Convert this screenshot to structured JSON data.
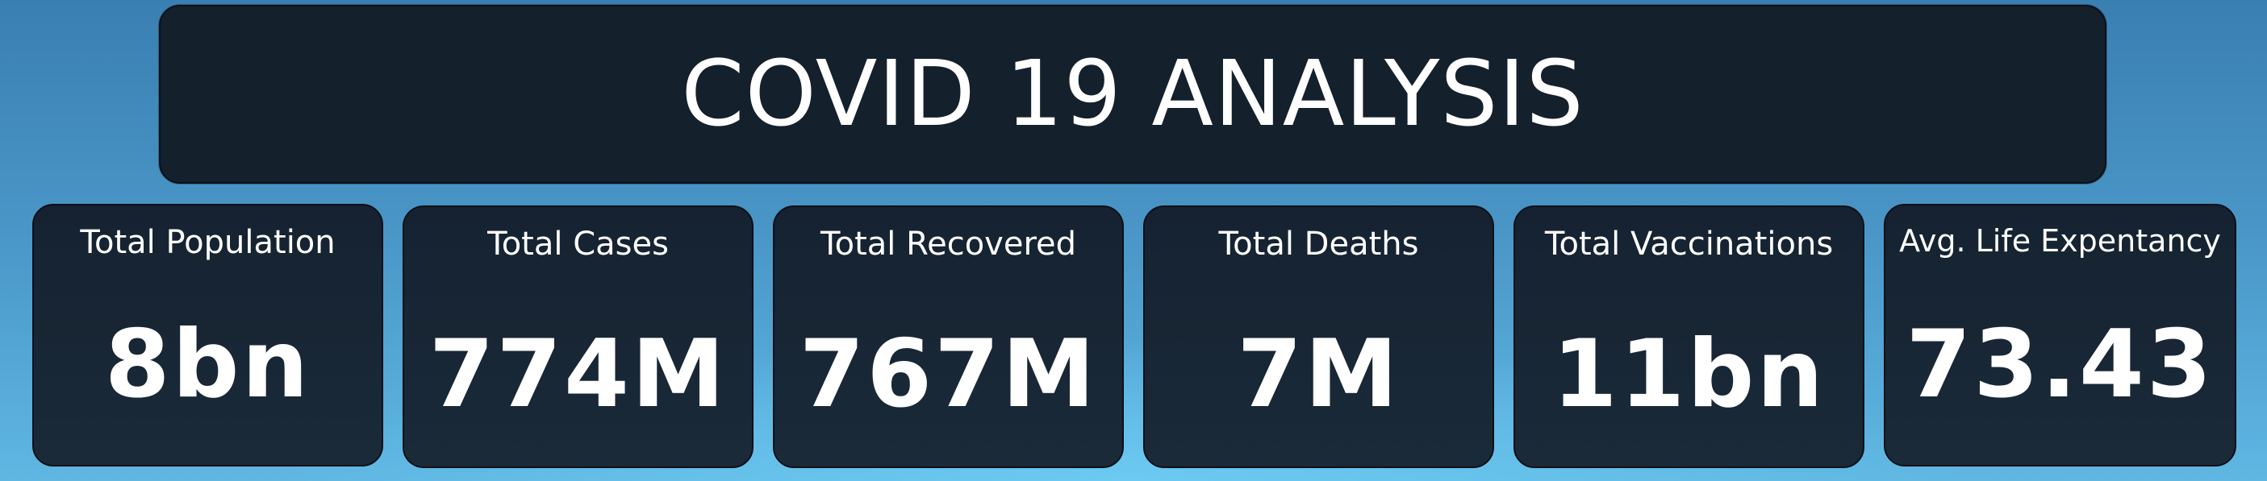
{
  "title": "COVID 19 ANALYSIS",
  "cards": [
    {
      "label": "Total Population",
      "value": "8bn"
    },
    {
      "label": "Total Cases",
      "value": "774M"
    },
    {
      "label": "Total Recovered",
      "value": "767M"
    },
    {
      "label": "Total Deaths",
      "value": "7M"
    },
    {
      "label": "Total Vaccinations",
      "value": "11bn"
    },
    {
      "label": "Avg. Life Expentancy",
      "value": "73.43"
    }
  ],
  "colors": {
    "card_background": "#14202c",
    "text": "#ffffff",
    "page_background_top": "#3a7fb1",
    "page_background_bottom": "#5fb7e2"
  }
}
